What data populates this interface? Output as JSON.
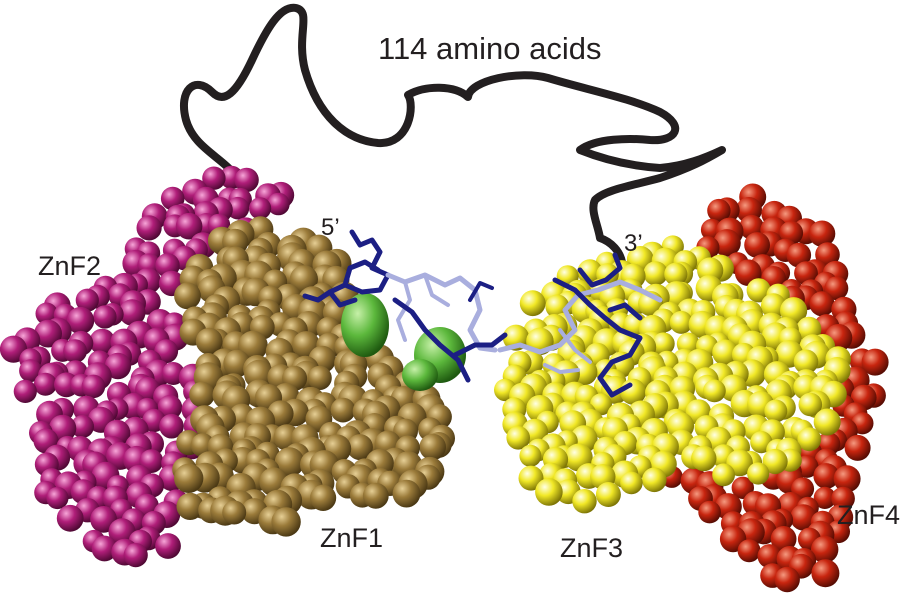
{
  "labels": {
    "linker": "114 amino acids",
    "znf1": "ZnF1",
    "znf2": "ZnF2",
    "znf3": "ZnF3",
    "znf4": "ZnF4",
    "five_prime": "5’",
    "three_prime": "3’"
  },
  "colors": {
    "znf1": "#8c6d31",
    "znf2": "#b01e79",
    "znf3": "#f2ea2b",
    "znf4": "#c8250f",
    "zinc": "#5cb83c",
    "rna_dark": "#1c1f84",
    "rna_light": "#a9aede",
    "linker": "#231f20",
    "text": "#231f20"
  },
  "icons": [
    "sphere-atom-icon"
  ]
}
